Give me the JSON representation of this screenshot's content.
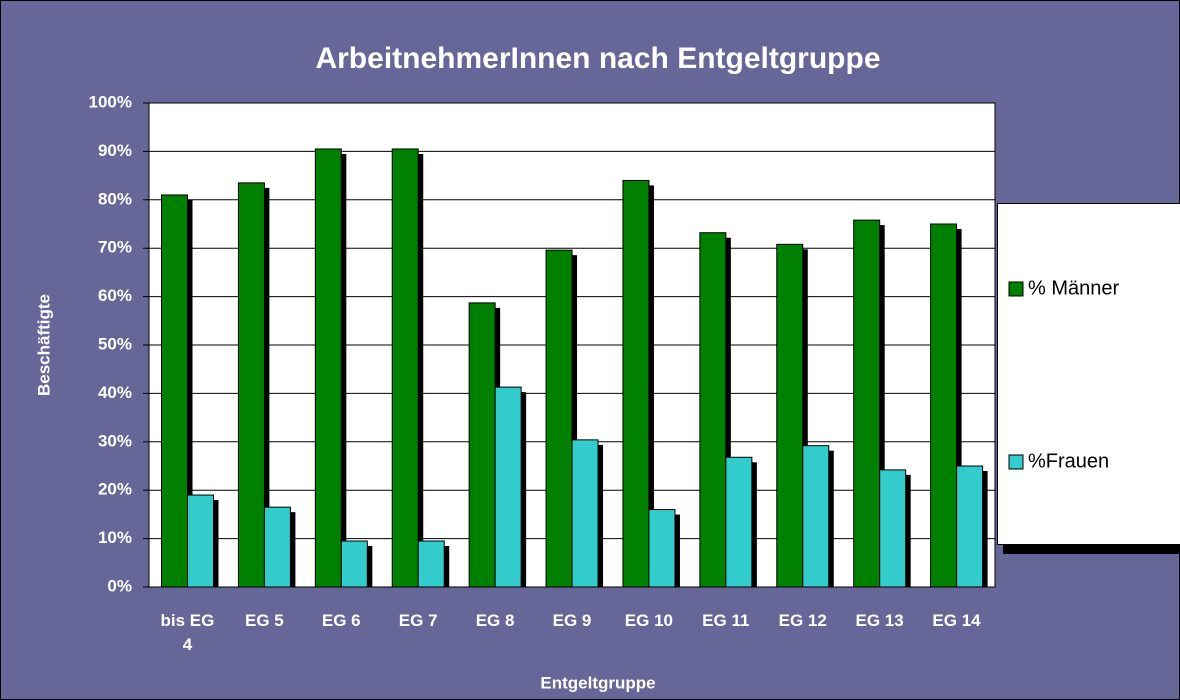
{
  "chart_data": {
    "type": "bar",
    "title": "ArbeitnehmerInnen nach Entgeltgruppe",
    "x_label": "Entgeltgruppe",
    "y_label": "Beschäftigte",
    "categories": [
      "bis EG 4",
      "EG 5",
      "EG 6",
      "EG 7",
      "EG 8",
      "EG 9",
      "EG 10",
      "EG 11",
      "EG 12",
      "EG 13",
      "EG 14"
    ],
    "series": [
      {
        "name": "% Männer",
        "color": "#008000",
        "values": [
          81,
          83.5,
          90.5,
          90.5,
          58.7,
          69.6,
          84,
          73.2,
          70.8,
          75.8,
          75
        ]
      },
      {
        "name": "%Frauen",
        "color": "#33cccc",
        "values": [
          19,
          16.5,
          9.5,
          9.5,
          41.3,
          30.4,
          16,
          26.8,
          29.2,
          24.2,
          25
        ]
      }
    ],
    "ylim": [
      0,
      100
    ],
    "yticks": [
      {
        "value": 0,
        "label": "0%"
      },
      {
        "value": 10,
        "label": "10%"
      },
      {
        "value": 20,
        "label": "20%"
      },
      {
        "value": 30,
        "label": "30%"
      },
      {
        "value": 40,
        "label": "40%"
      },
      {
        "value": 50,
        "label": "50%"
      },
      {
        "value": 60,
        "label": "60%"
      },
      {
        "value": 70,
        "label": "70%"
      },
      {
        "value": 80,
        "label": "80%"
      },
      {
        "value": 90,
        "label": "90%"
      },
      {
        "value": 100,
        "label": "100%"
      }
    ],
    "grid": true,
    "legend": "right"
  }
}
